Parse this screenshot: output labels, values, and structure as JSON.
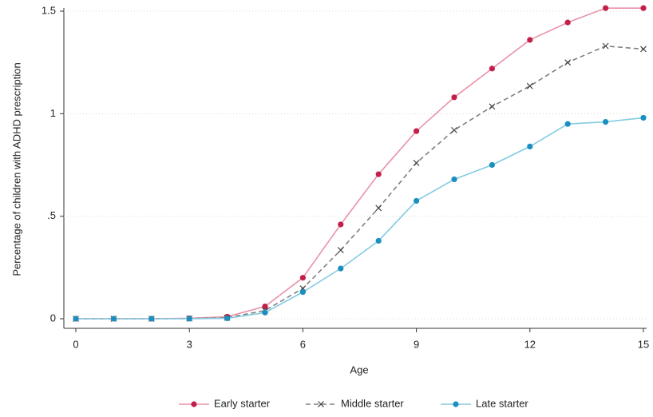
{
  "chart_data": {
    "type": "line",
    "x_label": "Age",
    "y_label": "Percentage of children with ADHD prescription",
    "x": [
      0,
      1,
      2,
      3,
      4,
      5,
      6,
      7,
      8,
      9,
      10,
      11,
      12,
      13,
      14,
      15
    ],
    "xlim": [
      0,
      15
    ],
    "xticks": [
      0,
      3,
      6,
      9,
      12,
      15
    ],
    "ylim": [
      0,
      1.5
    ],
    "yticks": [
      0,
      {
        "value": 0.5,
        "label": ".5"
      },
      1,
      1.5
    ],
    "grid": true,
    "legend": "bottom",
    "series": [
      {
        "name": "Early starter",
        "color": "#c41e4a",
        "line_color": "#e893a8",
        "marker": "circle",
        "dashed": false,
        "values": [
          0,
          0,
          0,
          0.002,
          0.01,
          0.06,
          0.2,
          0.46,
          0.705,
          0.915,
          1.08,
          1.22,
          1.36,
          1.445,
          1.515,
          1.515
        ]
      },
      {
        "name": "Middle starter",
        "color": "#444444",
        "line_color": "#808080",
        "marker": "x",
        "dashed": true,
        "values": [
          0,
          0,
          0,
          0.001,
          0.005,
          0.04,
          0.148,
          0.335,
          0.54,
          0.76,
          0.92,
          1.035,
          1.135,
          1.25,
          1.33,
          1.315
        ]
      },
      {
        "name": "Late starter",
        "color": "#1a8fc0",
        "line_color": "#84cbe3",
        "marker": "circle",
        "dashed": false,
        "values": [
          0,
          0,
          0,
          0,
          0.002,
          0.03,
          0.13,
          0.245,
          0.38,
          0.575,
          0.68,
          0.75,
          0.84,
          0.95,
          0.96,
          0.98
        ]
      }
    ]
  }
}
